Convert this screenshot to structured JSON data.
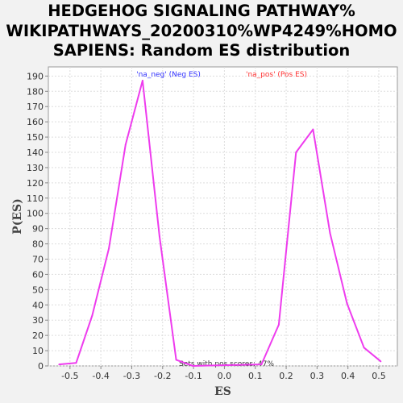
{
  "chart_data": {
    "type": "line",
    "title": [
      "HEDGEHOG SIGNALING PATHWAY%",
      "WIKIPATHWAYS_20200310%WP4249%HOMO",
      "SAPIENS: Random ES distribution"
    ],
    "xlabel": "ES",
    "ylabel": "P(ES)",
    "xlim": [
      -0.57,
      0.56
    ],
    "ylim": [
      0,
      196
    ],
    "x_ticks": [
      "-0.5",
      "-0.4",
      "-0.3",
      "-0.2",
      "-0.1",
      "0.0",
      "0.1",
      "0.2",
      "0.3",
      "0.4",
      "0.5"
    ],
    "y_ticks": [
      "0",
      "10",
      "20",
      "30",
      "40",
      "50",
      "60",
      "70",
      "80",
      "90",
      "100",
      "110",
      "120",
      "130",
      "140",
      "150",
      "160",
      "170",
      "180",
      "190"
    ],
    "grid": true,
    "legend": [
      {
        "label": "'na_neg' (Neg ES)",
        "color": "#3333ff"
      },
      {
        "label": "'na_pos' (Pos ES)",
        "color": "#ff3333"
      }
    ],
    "annotation": "Sets with pos scores: 47%",
    "series": [
      {
        "color": "#ee3cee",
        "x": [
          -0.535,
          -0.48,
          -0.428,
          -0.374,
          -0.32,
          -0.265,
          -0.21,
          -0.156,
          -0.102,
          0.12,
          0.176,
          0.232,
          0.287,
          0.342,
          0.397,
          0.452,
          0.506
        ],
        "y": [
          1,
          2,
          33,
          77,
          145,
          187,
          85,
          4,
          0,
          1,
          27,
          140,
          155,
          87,
          41,
          12,
          3
        ]
      }
    ]
  }
}
